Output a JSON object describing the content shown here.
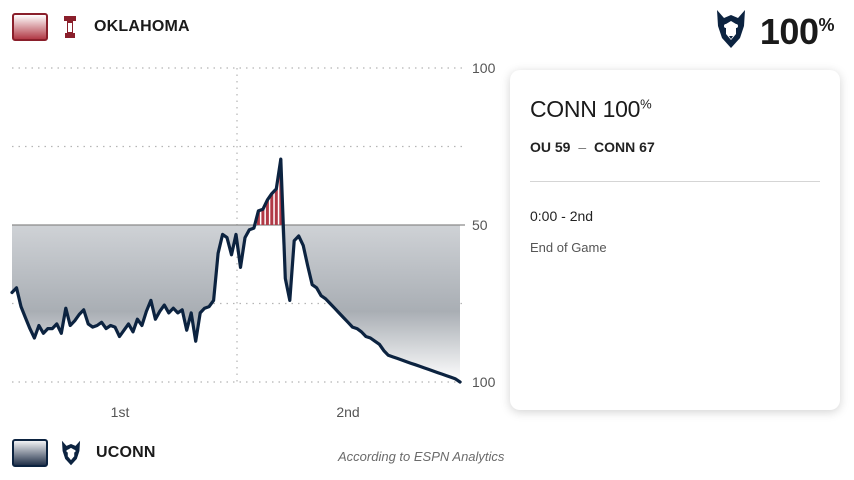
{
  "teams": {
    "top": {
      "name": "OKLAHOMA",
      "swatch_color": "#8a1f2b",
      "logo_icon": "ou-logo-icon"
    },
    "bottom": {
      "name": "UCONN",
      "swatch_color": "#0c2340",
      "logo_icon": "husky-logo-icon"
    }
  },
  "win_prob": {
    "value": "100",
    "unit": "%",
    "logo_icon": "husky-logo-icon"
  },
  "card": {
    "title_team": "CONN",
    "title_value": "100",
    "title_unit": "%",
    "score_away": "OU 59",
    "score_sep": "–",
    "score_home": "CONN 67",
    "clock": "0:00 - 2nd",
    "status": "End of Game"
  },
  "credit": "According to ESPN Analytics",
  "chart_data": {
    "type": "line",
    "title": "",
    "x_categories": [
      "1st",
      "2nd"
    ],
    "y_tick_labels": [
      "100",
      "50",
      "100"
    ],
    "ylim": [
      -100,
      100
    ],
    "midline": 0,
    "colors": {
      "ou": "#8a1f2b",
      "uconn": "#0c2340"
    },
    "grid": true,
    "series": [
      {
        "x": [
          0,
          1,
          2,
          3,
          4,
          5,
          6,
          7,
          8,
          9,
          10,
          11,
          12,
          13,
          14,
          15,
          16,
          17,
          18,
          19,
          20,
          21,
          22,
          23,
          24,
          25,
          26,
          27,
          28,
          29,
          30,
          31,
          32,
          33,
          34,
          35,
          36,
          37,
          38,
          39,
          40,
          41,
          42,
          43,
          44,
          45,
          46,
          47,
          48,
          49,
          50,
          51,
          52,
          53,
          54,
          55,
          56,
          57,
          58,
          59,
          60,
          61,
          62,
          63,
          64,
          65,
          66,
          67,
          68,
          69,
          70,
          71,
          72,
          73,
          74,
          75,
          76,
          77,
          78,
          79,
          80,
          81,
          82,
          83,
          84,
          85,
          86,
          87,
          88,
          89,
          90,
          91,
          92,
          93,
          94,
          95,
          96,
          97,
          98,
          99,
          100
        ],
        "y": [
          -43,
          -40,
          -52,
          -59,
          -66,
          -72,
          -64,
          -69,
          -66,
          -66,
          -63,
          -69,
          -53,
          -64,
          -61,
          -57,
          -54,
          -63,
          -65,
          -64,
          -62,
          -66,
          -64,
          -65,
          -71,
          -67,
          -63,
          -68,
          -60,
          -64,
          -55,
          -48,
          -60,
          -55,
          -51,
          -56,
          -53,
          -56,
          -54,
          -67,
          -56,
          -74,
          -56,
          -53,
          -52,
          -48,
          -18,
          -6,
          -8,
          -19,
          -6,
          -27,
          -8,
          -3,
          -2,
          9,
          10,
          16,
          20,
          23,
          42,
          -34,
          -48,
          -10,
          -7,
          -13,
          -26,
          -38,
          -40,
          -45,
          -47,
          -50,
          -53,
          -56,
          -59,
          -62,
          -65,
          -66,
          -68,
          -71,
          -72,
          -74,
          -76,
          -80,
          -83,
          -84,
          -85,
          -86,
          -87,
          -88,
          -89,
          -90,
          -91,
          -92,
          -93,
          -94,
          -95,
          -96,
          -97,
          -98,
          -100
        ]
      }
    ]
  }
}
